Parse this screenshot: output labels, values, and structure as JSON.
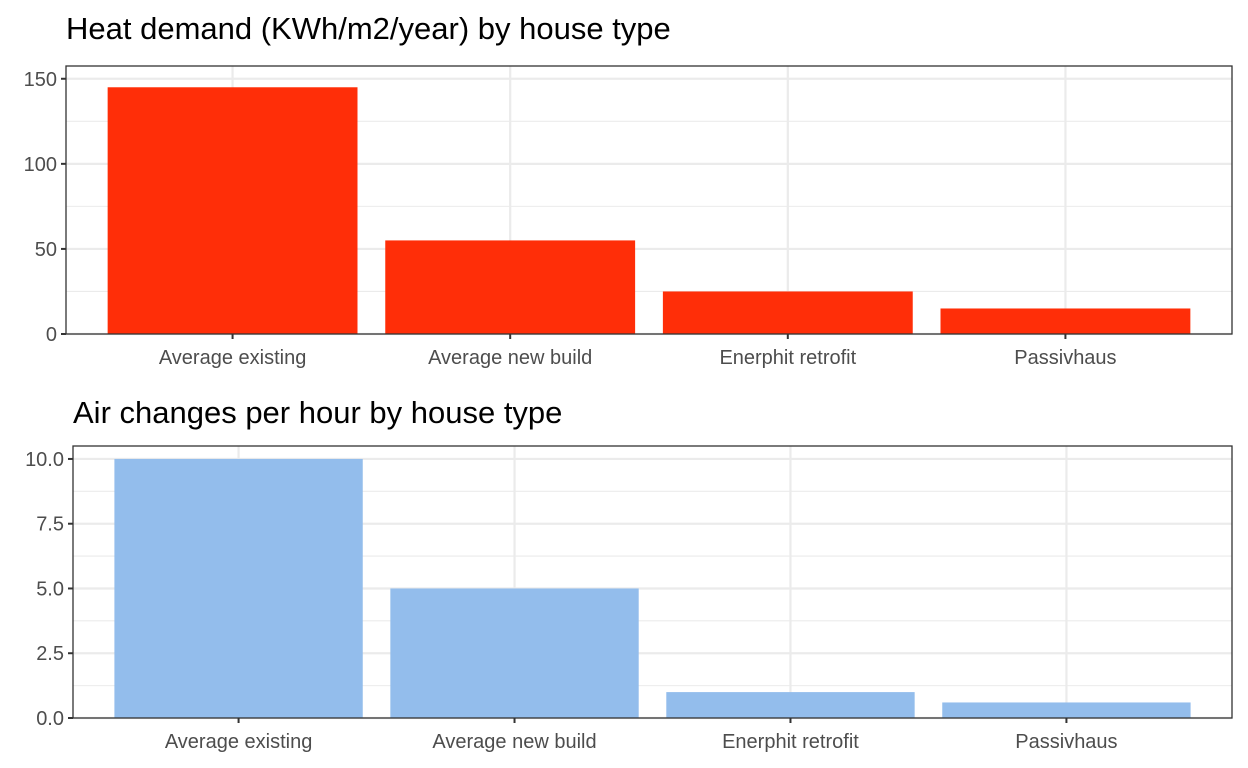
{
  "chart_data": [
    {
      "type": "bar",
      "title": "Heat demand (KWh/m2/year) by house type",
      "xlabel": "",
      "ylabel": "",
      "categories": [
        "Average existing",
        "Average new build",
        "Enerphit retrofit",
        "Passivhaus"
      ],
      "values": [
        145,
        55,
        25,
        15
      ],
      "ylim": [
        0,
        150
      ],
      "yticks": [
        0,
        50,
        100,
        150
      ],
      "ytick_labels": [
        "0",
        "50",
        "100",
        "150"
      ],
      "bar_color": "#ff2e08",
      "grid": true,
      "legend": "none"
    },
    {
      "type": "bar",
      "title": "Air changes per hour by house type",
      "xlabel": "",
      "ylabel": "",
      "categories": [
        "Average existing",
        "Average new build",
        "Enerphit retrofit",
        "Passivhaus"
      ],
      "values": [
        10,
        5,
        1,
        0.6
      ],
      "ylim": [
        0,
        10
      ],
      "yticks": [
        0,
        2.5,
        5,
        7.5,
        10
      ],
      "ytick_labels": [
        "0.0",
        "2.5",
        "5.0",
        "7.5",
        "10.0"
      ],
      "bar_color": "#93bdec",
      "grid": true,
      "legend": "none"
    }
  ]
}
